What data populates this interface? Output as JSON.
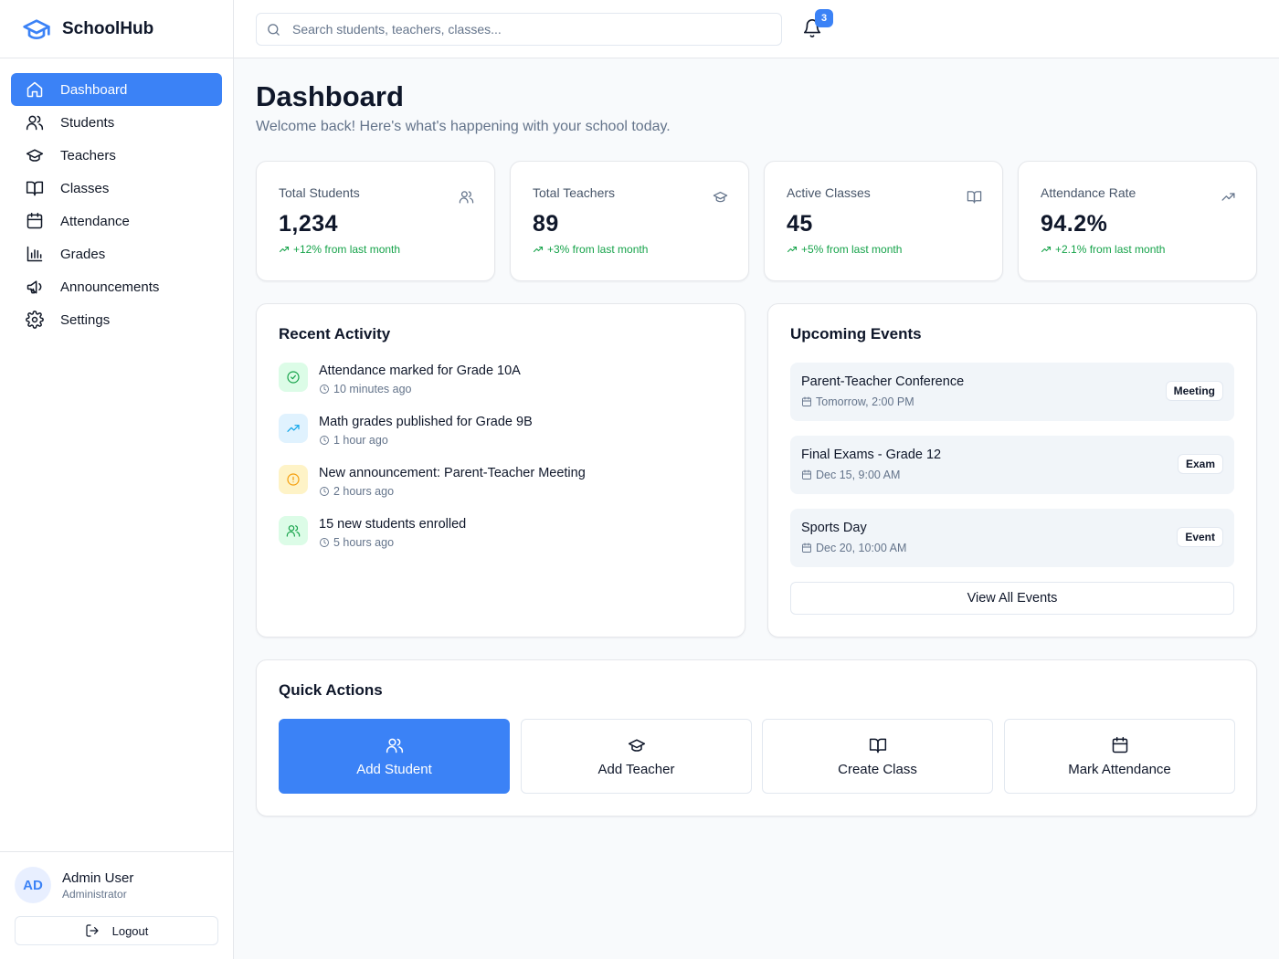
{
  "app": {
    "name": "SchoolHub",
    "accent": "#3b82f6"
  },
  "sidebar": {
    "items": [
      {
        "label": "Dashboard",
        "icon": "home-icon",
        "active": true
      },
      {
        "label": "Students",
        "icon": "users-icon"
      },
      {
        "label": "Teachers",
        "icon": "graduation-cap-icon"
      },
      {
        "label": "Classes",
        "icon": "book-open-icon"
      },
      {
        "label": "Attendance",
        "icon": "calendar-icon"
      },
      {
        "label": "Grades",
        "icon": "bar-chart-icon"
      },
      {
        "label": "Announcements",
        "icon": "megaphone-icon"
      },
      {
        "label": "Settings",
        "icon": "gear-icon"
      }
    ],
    "user": {
      "initials": "AD",
      "name": "Admin User",
      "role": "Administrator"
    },
    "logout_label": "Logout"
  },
  "header": {
    "search_placeholder": "Search students, teachers, classes...",
    "notification_count": "3"
  },
  "main": {
    "title": "Dashboard",
    "subtitle": "Welcome back! Here's what's happening with your school today.",
    "stats": [
      {
        "label": "Total Students",
        "value": "1,234",
        "change": "+12% from last month",
        "icon": "users-icon"
      },
      {
        "label": "Total Teachers",
        "value": "89",
        "change": "+3% from last month",
        "icon": "graduation-cap-icon"
      },
      {
        "label": "Active Classes",
        "value": "45",
        "change": "+5% from last month",
        "icon": "book-open-icon"
      },
      {
        "label": "Attendance Rate",
        "value": "94.2%",
        "change": "+2.1% from last month",
        "icon": "trending-up-icon"
      }
    ],
    "recent_activity": {
      "title": "Recent Activity",
      "items": [
        {
          "text": "Attendance marked for Grade 10A",
          "time": "10 minutes ago",
          "icon": "check-circle-icon",
          "color": "#16a34a"
        },
        {
          "text": "Math grades published for Grade 9B",
          "time": "1 hour ago",
          "icon": "trending-up-icon",
          "color": "#0ea5e9"
        },
        {
          "text": "New announcement: Parent-Teacher Meeting",
          "time": "2 hours ago",
          "icon": "alert-circle-icon",
          "color": "#f59e0b"
        },
        {
          "text": "15 new students enrolled",
          "time": "5 hours ago",
          "icon": "users-icon",
          "color": "#16a34a"
        }
      ]
    },
    "upcoming_events": {
      "title": "Upcoming Events",
      "items": [
        {
          "title": "Parent-Teacher Conference",
          "date": "Tomorrow, 2:00 PM",
          "badge": "Meeting"
        },
        {
          "title": "Final Exams - Grade 12",
          "date": "Dec 15, 9:00 AM",
          "badge": "Exam"
        },
        {
          "title": "Sports Day",
          "date": "Dec 20, 10:00 AM",
          "badge": "Event"
        }
      ],
      "view_all_label": "View All Events"
    },
    "quick_actions": {
      "title": "Quick Actions",
      "items": [
        {
          "label": "Add Student",
          "icon": "users-icon"
        },
        {
          "label": "Add Teacher",
          "icon": "graduation-cap-icon"
        },
        {
          "label": "Create Class",
          "icon": "book-open-icon"
        },
        {
          "label": "Mark Attendance",
          "icon": "calendar-icon"
        }
      ]
    }
  }
}
